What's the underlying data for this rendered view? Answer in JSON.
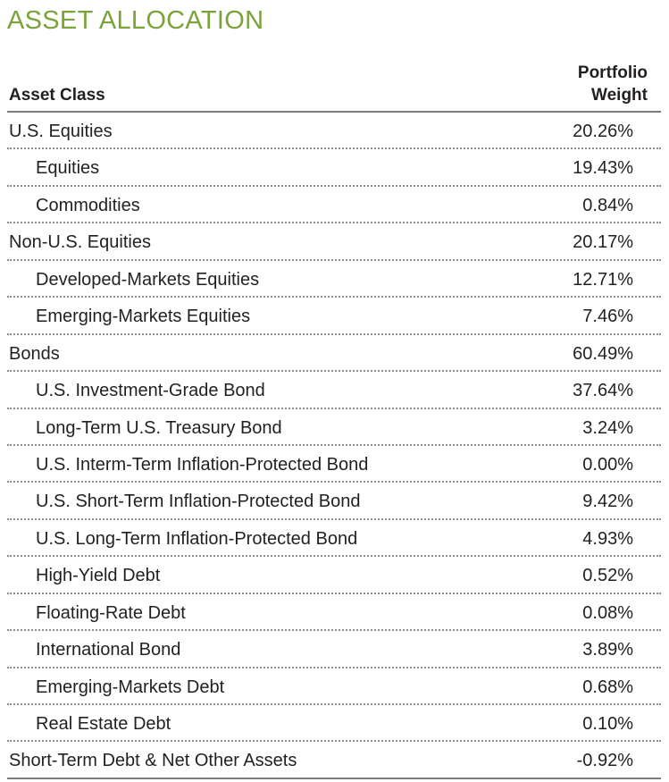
{
  "title": "ASSET ALLOCATION",
  "colors": {
    "title": "#7aa33a",
    "text": "#231f20",
    "rule": "#7a7a7a"
  },
  "header": {
    "asset_class": "Asset Class",
    "portfolio_weight_line1": "Portfolio",
    "portfolio_weight_line2": "Weight"
  },
  "rows": [
    {
      "label": "U.S. Equities",
      "value": "20.26%",
      "level": 0
    },
    {
      "label": "Equities",
      "value": "19.43%",
      "level": 1
    },
    {
      "label": "Commodities",
      "value": "0.84%",
      "level": 1
    },
    {
      "label": "Non-U.S. Equities",
      "value": "20.17%",
      "level": 0
    },
    {
      "label": "Developed-Markets Equities",
      "value": "12.71%",
      "level": 1
    },
    {
      "label": "Emerging-Markets Equities",
      "value": "7.46%",
      "level": 1
    },
    {
      "label": "Bonds",
      "value": "60.49%",
      "level": 0
    },
    {
      "label": "U.S. Investment-Grade Bond",
      "value": "37.64%",
      "level": 1
    },
    {
      "label": "Long-Term U.S. Treasury Bond",
      "value": "3.24%",
      "level": 1
    },
    {
      "label": "U.S. Interm-Term Inflation-Protected Bond",
      "value": "0.00%",
      "level": 1
    },
    {
      "label": "U.S. Short-Term Inflation-Protected Bond",
      "value": "9.42%",
      "level": 1
    },
    {
      "label": "U.S. Long-Term Inflation-Protected Bond",
      "value": "4.93%",
      "level": 1
    },
    {
      "label": "High-Yield Debt",
      "value": "0.52%",
      "level": 1
    },
    {
      "label": "Floating-Rate Debt",
      "value": "0.08%",
      "level": 1
    },
    {
      "label": "International Bond",
      "value": "3.89%",
      "level": 1
    },
    {
      "label": "Emerging-Markets Debt",
      "value": "0.68%",
      "level": 1
    },
    {
      "label": "Real Estate Debt",
      "value": "0.10%",
      "level": 1
    },
    {
      "label": "Short-Term Debt & Net Other Assets",
      "value": "-0.92%",
      "level": 0
    }
  ]
}
